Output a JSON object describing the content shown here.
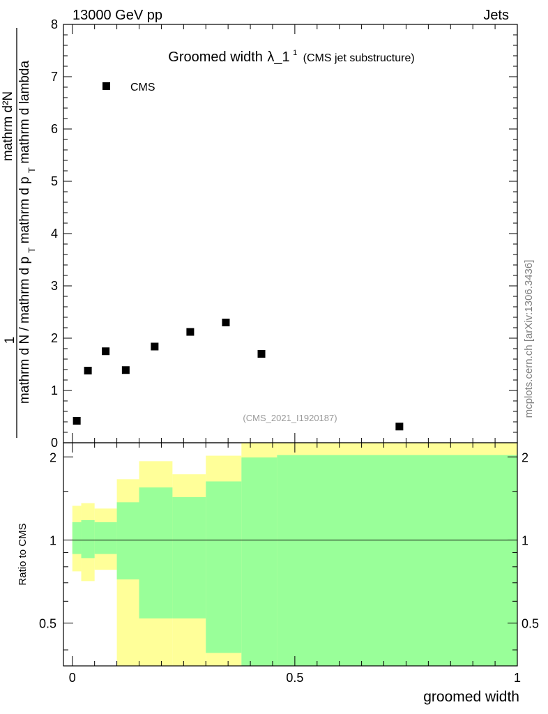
{
  "header": {
    "energy_label": "13000 GeV pp",
    "process_label": "Jets"
  },
  "main_plot": {
    "title": "Groomed width",
    "title_symbol": "λ_1",
    "title_superscript": "1",
    "subtitle": "(CMS jet substructure)",
    "ylabel_prefix": "1",
    "ylabel_numerator": "mathrm d²N",
    "ylabel_denominator": "mathrm d N / mathrm d p",
    "ylabel_denominator_sub": "T",
    "ylabel_denominator_mid": " mathrm d p",
    "ylabel_denominator_sub2": "T",
    "ylabel_denominator_end": " mathrm d lambda",
    "legend_label": "CMS",
    "analysis_id": "(CMS_2021_I1920187)"
  },
  "ratio_plot": {
    "ylabel": "Ratio to CMS"
  },
  "side_label": "mcplots.cern.ch [arXiv:1306.3436]",
  "xlabel": "groomed width",
  "colors": {
    "band_outer": "#ffff99",
    "band_inner": "#99ff99",
    "marker": "#000000"
  },
  "chart_data": [
    {
      "type": "scatter",
      "series": [
        {
          "name": "CMS",
          "x": [
            0.01,
            0.035,
            0.075,
            0.12,
            0.185,
            0.265,
            0.345,
            0.425,
            0.735
          ],
          "y": [
            0.42,
            1.38,
            1.75,
            1.39,
            1.84,
            2.12,
            2.3,
            1.7,
            0.31
          ]
        }
      ],
      "xlim": [
        -0.02,
        1.0
      ],
      "ylim": [
        0,
        8
      ],
      "yticks": [
        0,
        1,
        2,
        3,
        4,
        5,
        6,
        7,
        8
      ]
    },
    {
      "type": "area",
      "bins": [
        0.0,
        0.02,
        0.05,
        0.1,
        0.15,
        0.225,
        0.3,
        0.38,
        0.46,
        1.0
      ],
      "series": [
        {
          "values_low": [
            0.77,
            0.71,
            0.78,
            0.35,
            0.35,
            0.35,
            0.35,
            0.35,
            0.35
          ],
          "values_high": [
            1.33,
            1.36,
            1.3,
            1.66,
            1.93,
            1.73,
            2.02,
            2.25,
            2.25
          ]
        },
        {
          "values_low": [
            0.89,
            0.86,
            0.89,
            0.72,
            0.52,
            0.52,
            0.39,
            0.35,
            0.35
          ],
          "values_high": [
            1.16,
            1.18,
            1.16,
            1.37,
            1.55,
            1.43,
            1.63,
            1.99,
            2.03
          ]
        }
      ],
      "reference_line": 1,
      "xlim": [
        -0.02,
        1.0
      ],
      "ylim": [
        0.35,
        2.25
      ],
      "ytick_labels": [
        "0.5",
        "1",
        "2"
      ],
      "xtick_labels": [
        "0",
        "0.5",
        "1"
      ]
    }
  ]
}
